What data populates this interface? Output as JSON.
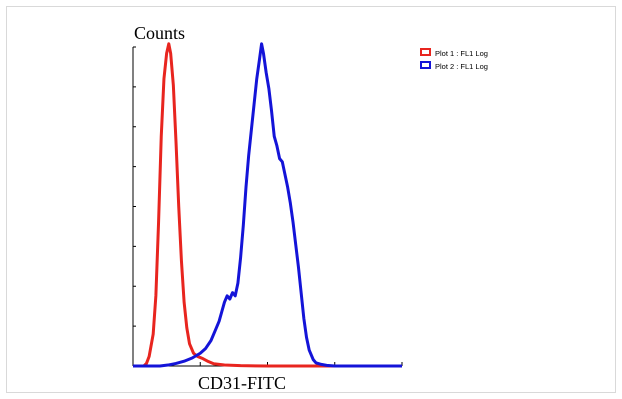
{
  "chart_data": {
    "type": "line",
    "ylabel": "Counts",
    "xlabel": "CD31-FITC",
    "xlim": [
      0,
      100
    ],
    "ylim": [
      0,
      100
    ],
    "x_scale": "log",
    "grid": false,
    "legend_position": "top-right",
    "series": [
      {
        "name": "Plot 1 : FL1 Log",
        "color": "#e8251f",
        "points": [
          [
            0,
            0
          ],
          [
            4,
            0
          ],
          [
            5,
            0.8
          ],
          [
            6,
            3
          ],
          [
            7.5,
            10
          ],
          [
            8.5,
            22
          ],
          [
            9.5,
            45
          ],
          [
            10.5,
            72
          ],
          [
            11.5,
            90
          ],
          [
            12.5,
            98
          ],
          [
            13.3,
            101
          ],
          [
            14,
            98
          ],
          [
            15,
            88
          ],
          [
            16,
            70
          ],
          [
            17,
            50
          ],
          [
            18,
            33
          ],
          [
            19,
            20
          ],
          [
            20,
            12
          ],
          [
            21,
            7
          ],
          [
            22.5,
            4
          ],
          [
            24,
            3
          ],
          [
            26,
            2.3
          ],
          [
            28,
            1.4
          ],
          [
            30,
            0.7
          ],
          [
            34,
            0.3
          ],
          [
            40,
            0.1
          ],
          [
            50,
            0
          ],
          [
            100,
            0
          ]
        ]
      },
      {
        "name": "Plot 2 : FL1 Log",
        "color": "#1414d8",
        "points": [
          [
            0,
            0
          ],
          [
            10,
            0
          ],
          [
            13,
            0.3
          ],
          [
            16,
            0.8
          ],
          [
            19,
            1.5
          ],
          [
            22,
            2.5
          ],
          [
            25,
            4
          ],
          [
            27,
            5.5
          ],
          [
            29,
            8
          ],
          [
            30.5,
            11
          ],
          [
            32,
            14
          ],
          [
            33,
            17
          ],
          [
            34,
            20
          ],
          [
            35,
            22
          ],
          [
            36,
            21
          ],
          [
            37,
            23
          ],
          [
            38,
            22
          ],
          [
            39,
            26
          ],
          [
            40,
            34
          ],
          [
            41,
            44
          ],
          [
            42,
            56
          ],
          [
            43,
            66
          ],
          [
            44,
            74
          ],
          [
            45,
            82
          ],
          [
            46,
            90
          ],
          [
            47,
            96
          ],
          [
            47.8,
            101
          ],
          [
            48.5,
            98
          ],
          [
            49.5,
            92
          ],
          [
            50.5,
            87
          ],
          [
            51.5,
            80
          ],
          [
            52.5,
            72
          ],
          [
            53.5,
            69
          ],
          [
            54.5,
            65
          ],
          [
            55.5,
            64
          ],
          [
            56.5,
            60
          ],
          [
            57.5,
            56
          ],
          [
            58.5,
            51
          ],
          [
            59.5,
            45
          ],
          [
            60.5,
            38
          ],
          [
            61.5,
            31
          ],
          [
            62.5,
            23
          ],
          [
            63.5,
            15
          ],
          [
            64.5,
            9
          ],
          [
            65.5,
            5
          ],
          [
            67,
            2
          ],
          [
            68,
            1
          ],
          [
            70,
            0.5
          ],
          [
            72,
            0.2
          ],
          [
            75,
            0
          ],
          [
            100,
            0
          ]
        ]
      }
    ]
  }
}
